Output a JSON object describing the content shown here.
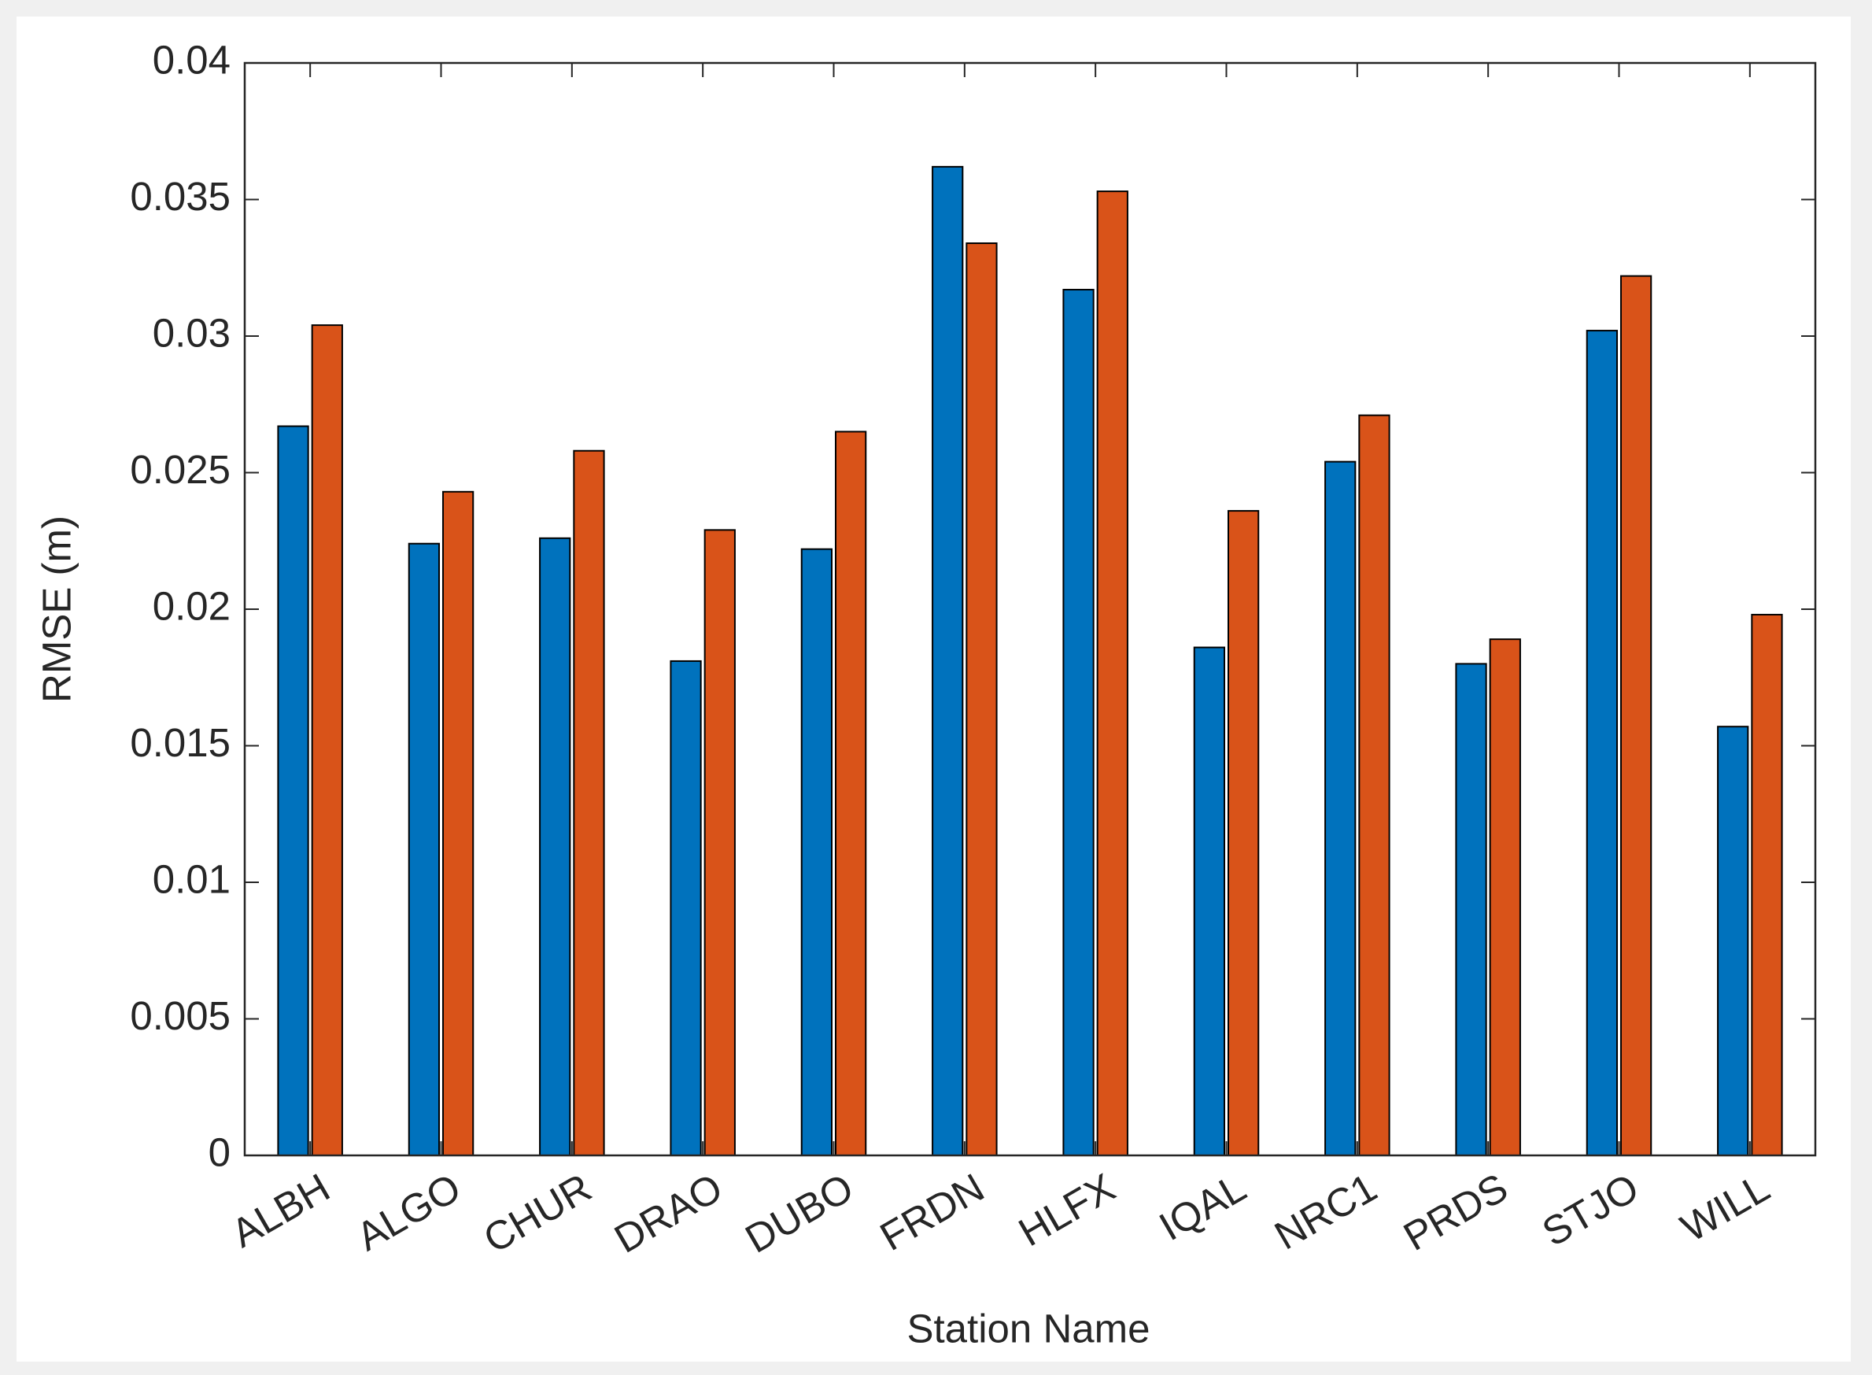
{
  "chart_data": {
    "type": "bar",
    "xlabel": "Station Name",
    "ylabel": "RMSE (m)",
    "categories": [
      "ALBH",
      "ALGO",
      "CHUR",
      "DRAO",
      "DUBO",
      "FRDN",
      "HLFX",
      "IQAL",
      "NRC1",
      "PRDS",
      "STJO",
      "WILL"
    ],
    "series": [
      {
        "color": "#0072bd",
        "values": [
          0.0267,
          0.0224,
          0.0226,
          0.0181,
          0.0222,
          0.0362,
          0.0317,
          0.0186,
          0.0254,
          0.018,
          0.0302,
          0.0157
        ]
      },
      {
        "color": "#d95319",
        "values": [
          0.0304,
          0.0243,
          0.0258,
          0.0229,
          0.0265,
          0.0334,
          0.0353,
          0.0236,
          0.0271,
          0.0189,
          0.0322,
          0.0198
        ]
      }
    ],
    "ylim": [
      0,
      0.04
    ],
    "yticks": [
      0,
      0.005,
      0.01,
      0.015,
      0.02,
      0.025,
      0.03,
      0.035,
      0.04
    ],
    "grid": false
  }
}
